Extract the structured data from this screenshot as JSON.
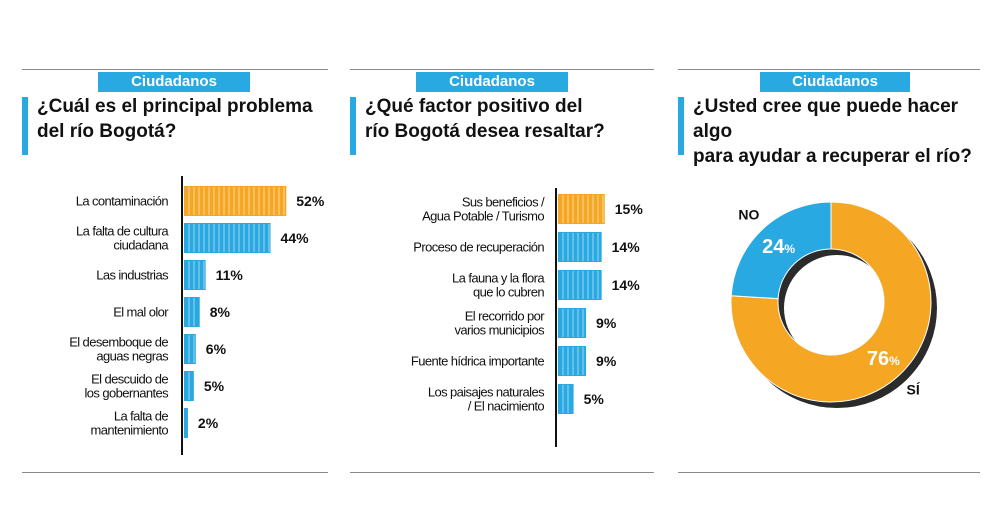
{
  "colors": {
    "accent": "#29a9e1",
    "highlight": "#f5a623",
    "bar": "#29a9e1"
  },
  "panels": [
    {
      "section_label": "Ciudadanos",
      "question_line1": "¿Cuál es el principal problema",
      "question_line2": "del río Bogotá?"
    },
    {
      "section_label": "Ciudadanos",
      "question_line1": "¿Qué factor positivo del",
      "question_line2": "río Bogotá desea resaltar?"
    },
    {
      "section_label": "Ciudadanos",
      "question_line1": "¿Usted cree que puede hacer algo",
      "question_line2": "para ayudar a recuperar el río?"
    }
  ],
  "chart_data": [
    {
      "type": "bar",
      "orientation": "horizontal",
      "title": "¿Cuál es el principal problema del río Bogotá?",
      "categories": [
        [
          "La contaminación"
        ],
        [
          "La falta de cultura",
          "ciudadana"
        ],
        [
          "Las industrias"
        ],
        [
          "El mal olor"
        ],
        [
          "El desemboque de",
          "aguas negras"
        ],
        [
          "El descuido de",
          "los gobernantes"
        ],
        [
          "La falta de",
          "mantenimiento"
        ]
      ],
      "values": [
        52,
        44,
        11,
        8,
        6,
        5,
        2
      ],
      "value_labels": [
        "52%",
        "44%",
        "11%",
        "8%",
        "6%",
        "5%",
        "2%"
      ],
      "highlight_index": 0,
      "xlim": [
        0,
        60
      ]
    },
    {
      "type": "bar",
      "orientation": "horizontal",
      "title": "¿Qué factor positivo del río Bogotá desea resaltar?",
      "categories": [
        [
          "Sus beneficios /",
          "Agua Potable / Turismo"
        ],
        [
          "Proceso de recuperación"
        ],
        [
          "La fauna y la flora",
          "que lo cubren"
        ],
        [
          "El recorrido por",
          "varios municipios"
        ],
        [
          "Fuente hídrica importante"
        ],
        [
          "Los paisajes naturales",
          "/ El nacimiento"
        ]
      ],
      "values": [
        15,
        14,
        14,
        9,
        9,
        5
      ],
      "value_labels": [
        "15%",
        "14%",
        "14%",
        "9%",
        "9%",
        "5%"
      ],
      "highlight_index": 0,
      "xlim": [
        0,
        17
      ]
    },
    {
      "type": "pie",
      "title": "¿Usted cree que puede hacer algo para ayudar a recuperar el río?",
      "slices": [
        {
          "name": "SÍ",
          "value": 76,
          "value_label": "76",
          "pct_sign": "%",
          "color": "#f5a623"
        },
        {
          "name": "NO",
          "value": 24,
          "value_label": "24",
          "pct_sign": "%",
          "color": "#29a9e1"
        }
      ]
    }
  ]
}
